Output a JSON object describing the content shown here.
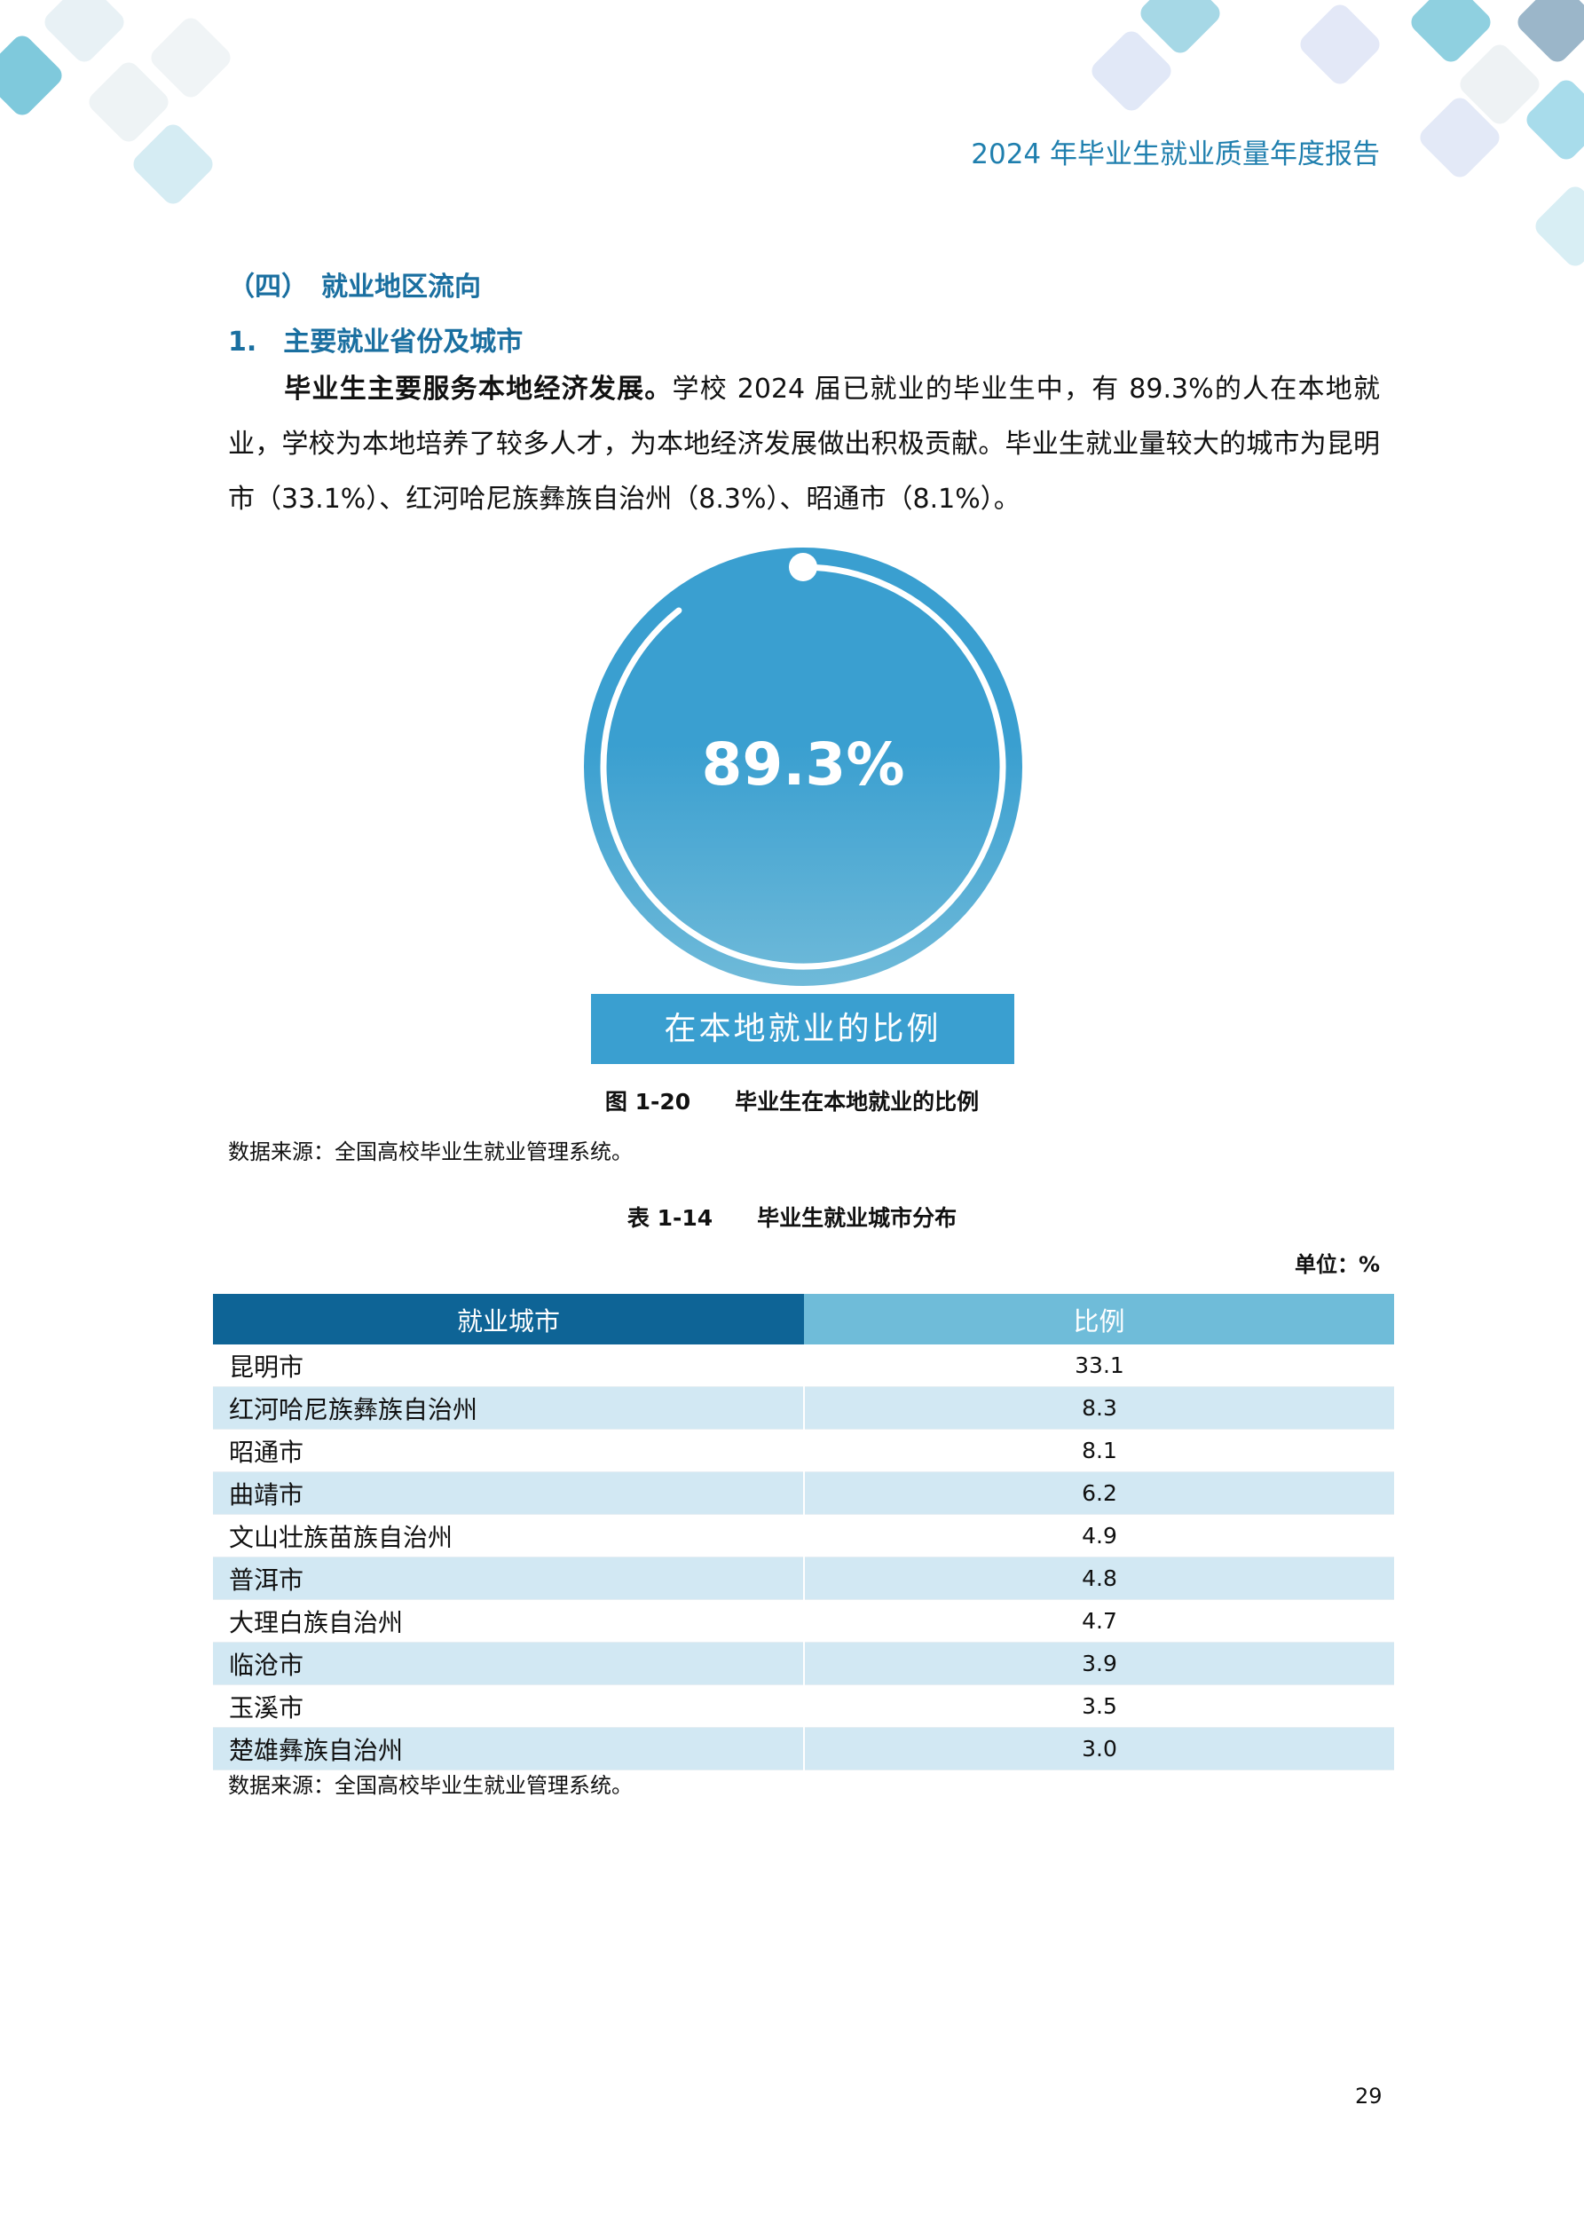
{
  "header": {
    "title": "2024 年毕业生就业质量年度报告"
  },
  "section": {
    "heading": "（四）　就业地区流向",
    "subheading": "1.　主要就业省份及城市"
  },
  "paragraph": {
    "lead": "毕业生主要服务本地经济发展。",
    "body": "学校 2024 届已就业的毕业生中，有 89.3%的人在本地就业，学校为本地培养了较多人才，为本地经济发展做出积极贡献。毕业生就业量较大的城市为昆明市（33.1%）、红河哈尼族彝族自治州（8.3%）、昭通市（8.1%）。"
  },
  "figure": {
    "value_label": "89.3%",
    "value": 89.3,
    "box_label": "在本地就业的比例",
    "caption": "图 1-20　　毕业生在本地就业的比例",
    "source": "数据来源：全国高校毕业生就业管理系统。",
    "colors": {
      "fill": "#3a9fd0",
      "ring": "#ffffff"
    }
  },
  "table": {
    "caption": "表 1-14　　毕业生就业城市分布",
    "unit": "单位：%",
    "headers": [
      "就业城市",
      "比例"
    ],
    "rows": [
      [
        "昆明市",
        "33.1"
      ],
      [
        "红河哈尼族彝族自治州",
        "8.3"
      ],
      [
        "昭通市",
        "8.1"
      ],
      [
        "曲靖市",
        "6.2"
      ],
      [
        "文山壮族苗族自治州",
        "4.9"
      ],
      [
        "普洱市",
        "4.8"
      ],
      [
        "大理白族自治州",
        "4.7"
      ],
      [
        "临沧市",
        "3.9"
      ],
      [
        "玉溪市",
        "3.5"
      ],
      [
        "楚雄彝族自治州",
        "3.0"
      ]
    ],
    "source": "数据来源：全国高校毕业生就业管理系统。"
  },
  "page_number": "29"
}
